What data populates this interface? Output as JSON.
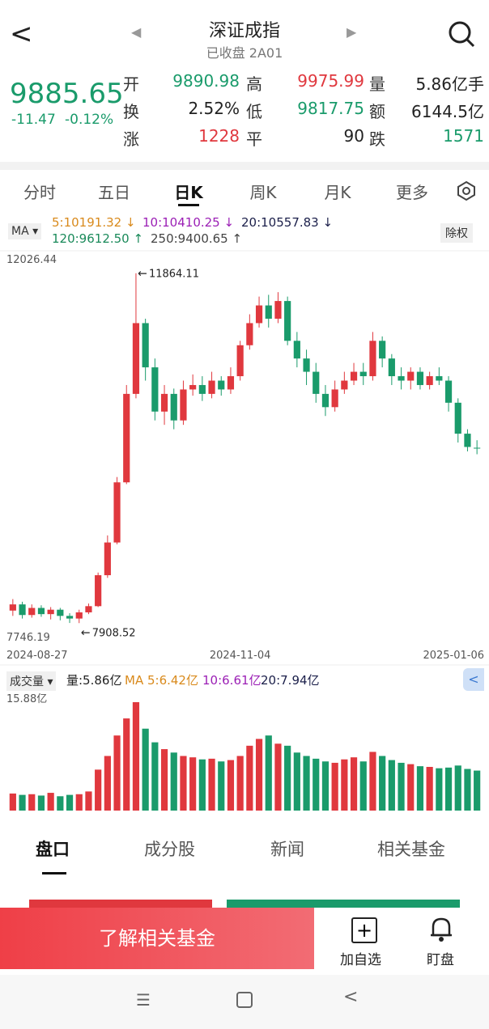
{
  "header": {
    "title": "深证成指",
    "subtitle": "已收盘 2A01"
  },
  "quote": {
    "price": "9885.65",
    "change": "-11.47",
    "change_pct": "-0.12%",
    "stats": [
      {
        "label": "开",
        "value": "9890.98",
        "color": "#1a9b6b"
      },
      {
        "label": "高",
        "value": "9975.99",
        "color": "#e0383e"
      },
      {
        "label": "量",
        "value": "5.86亿手",
        "color": "#222"
      },
      {
        "label": "换",
        "value": "2.52%",
        "color": "#222"
      },
      {
        "label": "低",
        "value": "9817.75",
        "color": "#1a9b6b"
      },
      {
        "label": "额",
        "value": "6144.5亿",
        "color": "#222"
      },
      {
        "label": "涨",
        "value": "1228",
        "color": "#e0383e"
      },
      {
        "label": "平",
        "value": "90",
        "color": "#222"
      },
      {
        "label": "跌",
        "value": "1571",
        "color": "#1a9b6b"
      }
    ]
  },
  "tabs": {
    "items": [
      "分时",
      "五日",
      "日K",
      "周K",
      "月K",
      "更多"
    ],
    "active": 2
  },
  "ma_legend": {
    "label": "MA",
    "items": [
      {
        "text": "5:10191.32 ↓",
        "color": "#d98a1c"
      },
      {
        "text": "10:10410.25 ↓",
        "color": "#9b1fb5"
      },
      {
        "text": "20:10557.83 ↓",
        "color": "#1b1f4a"
      },
      {
        "text": "120:9612.50 ↑",
        "color": "#1a8a5a"
      },
      {
        "text": "250:9400.65 ↑",
        "color": "#444"
      }
    ],
    "adjust": "除权"
  },
  "chart": {
    "type": "candlestick",
    "ylim": [
      7746.19,
      12026.44
    ],
    "up_color": "#e0383e",
    "down_color": "#1a9b6b",
    "x_labels": [
      {
        "index": 0,
        "label": "2024-08-27"
      },
      {
        "index": 24,
        "label": "2024-11-04"
      },
      {
        "index": 49,
        "label": "2025-01-06"
      }
    ],
    "candles": [
      [
        8050,
        8120,
        8180,
        7990
      ],
      [
        8120,
        8000,
        8150,
        7960
      ],
      [
        8000,
        8080,
        8120,
        7970
      ],
      [
        8080,
        8010,
        8110,
        7980
      ],
      [
        8010,
        8060,
        8090,
        7950
      ],
      [
        8060,
        7990,
        8080,
        7940
      ],
      [
        7990,
        7960,
        8020,
        7910
      ],
      [
        7960,
        8030,
        8060,
        7908.52
      ],
      [
        8030,
        8100,
        8130,
        8010
      ],
      [
        8100,
        8450,
        8480,
        8090
      ],
      [
        8450,
        8820,
        8900,
        8420
      ],
      [
        8820,
        9500,
        9560,
        8800
      ],
      [
        9500,
        10500,
        10600,
        9480
      ],
      [
        10500,
        11300,
        11864.11,
        10450
      ],
      [
        11300,
        10800,
        11350,
        10650
      ],
      [
        10800,
        10300,
        10900,
        10200
      ],
      [
        10300,
        10500,
        10600,
        10150
      ],
      [
        10500,
        10200,
        10560,
        10100
      ],
      [
        10200,
        10550,
        10650,
        10150
      ],
      [
        10550,
        10600,
        10720,
        10480
      ],
      [
        10600,
        10500,
        10700,
        10420
      ],
      [
        10500,
        10650,
        10750,
        10450
      ],
      [
        10650,
        10550,
        10700,
        10480
      ],
      [
        10550,
        10700,
        10800,
        10500
      ],
      [
        10700,
        11050,
        11100,
        10650
      ],
      [
        11050,
        11300,
        11400,
        11000
      ],
      [
        11300,
        11500,
        11600,
        11250
      ],
      [
        11500,
        11350,
        11620,
        11250
      ],
      [
        11350,
        11550,
        11650,
        11300
      ],
      [
        11550,
        11100,
        11600,
        11050
      ],
      [
        11100,
        10900,
        11200,
        10800
      ],
      [
        10900,
        10750,
        11000,
        10600
      ],
      [
        10750,
        10500,
        10850,
        10400
      ],
      [
        10500,
        10350,
        10600,
        10250
      ],
      [
        10350,
        10550,
        10650,
        10300
      ],
      [
        10550,
        10650,
        10750,
        10500
      ],
      [
        10650,
        10750,
        10850,
        10600
      ],
      [
        10750,
        10700,
        10850,
        10600
      ],
      [
        10700,
        11100,
        11200,
        10650
      ],
      [
        11100,
        10900,
        11150,
        10800
      ],
      [
        10900,
        10700,
        10950,
        10600
      ],
      [
        10700,
        10650,
        10800,
        10550
      ],
      [
        10650,
        10750,
        10800,
        10550
      ],
      [
        10750,
        10600,
        10800,
        10550
      ],
      [
        10600,
        10700,
        10750,
        10550
      ],
      [
        10700,
        10650,
        10800,
        10600
      ],
      [
        10650,
        10400,
        10700,
        10300
      ],
      [
        10400,
        10050,
        10450,
        9950
      ],
      [
        10050,
        9900,
        10100,
        9850
      ],
      [
        9890.98,
        9885.65,
        9975.99,
        9817.75
      ]
    ]
  },
  "volume": {
    "label": "成交量",
    "ylim": [
      0,
      15.88
    ],
    "yticks": [
      {
        "value": 15.88,
        "label": "15.88亿"
      }
    ],
    "legend": [
      {
        "text": "量:5.86亿",
        "color": "#222"
      },
      {
        "text": "MA 5:6.42亿",
        "color": "#d98a1c"
      },
      {
        "text": "10:6.61亿",
        "color": "#9b1fb5"
      },
      {
        "text": "20:7.94亿",
        "color": "#1b1f4a"
      }
    ],
    "values": [
      2.5,
      2.3,
      2.4,
      2.2,
      2.6,
      2.1,
      2.3,
      2.4,
      2.8,
      6,
      8,
      11,
      13.5,
      15.88,
      12,
      10,
      9,
      8.5,
      8,
      7.8,
      7.5,
      7.6,
      7.2,
      7.4,
      8,
      9.5,
      10.5,
      11,
      9.8,
      9.5,
      8.5,
      8,
      7.6,
      7.2,
      7,
      7.5,
      7.8,
      7.2,
      8.6,
      8,
      7.4,
      7,
      6.8,
      6.5,
      6.4,
      6.2,
      6.3,
      6.6,
      6.1,
      5.86
    ]
  },
  "bottom_tabs": {
    "items": [
      "盘口",
      "成分股",
      "新闻",
      "相关基金"
    ],
    "active": 0
  },
  "actions": {
    "primary": "了解相关基金",
    "add": "加自选",
    "watch": "盯盘"
  }
}
